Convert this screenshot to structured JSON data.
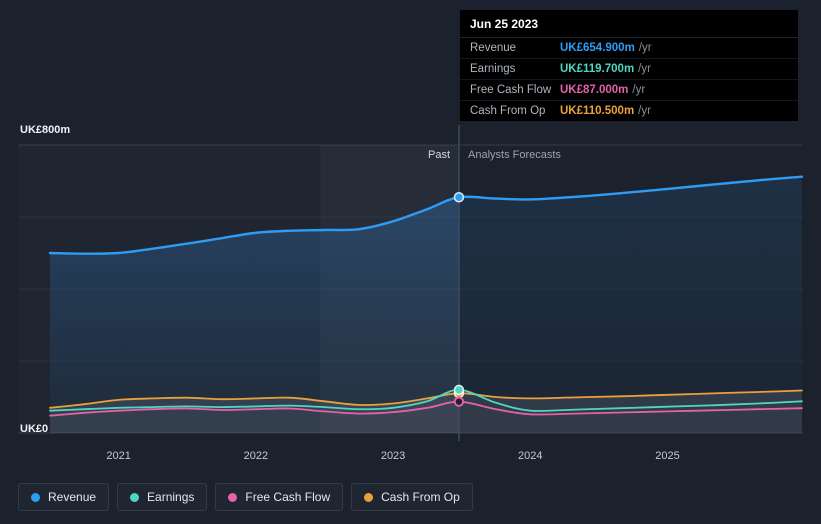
{
  "tooltip": {
    "date": "Jun 25 2023",
    "rows": [
      {
        "label": "Revenue",
        "value": "UK£654.900m",
        "suffix": "/yr",
        "color": "#2f9cf4"
      },
      {
        "label": "Earnings",
        "value": "UK£119.700m",
        "suffix": "/yr",
        "color": "#4fd6c2"
      },
      {
        "label": "Free Cash Flow",
        "value": "UK£87.000m",
        "suffix": "/yr",
        "color": "#e561aa"
      },
      {
        "label": "Cash From Op",
        "value": "UK£110.500m",
        "suffix": "/yr",
        "color": "#e9a23b"
      }
    ]
  },
  "axis": {
    "y_top": "UK£800m",
    "y_bottom": "UK£0",
    "x_ticks": [
      "2021",
      "2022",
      "2023",
      "2024",
      "2025"
    ]
  },
  "sections": {
    "past": "Past",
    "forecast": "Analysts Forecasts"
  },
  "legend": [
    {
      "label": "Revenue",
      "color": "#2f9cf4"
    },
    {
      "label": "Earnings",
      "color": "#4fd6c2"
    },
    {
      "label": "Free Cash Flow",
      "color": "#e561aa"
    },
    {
      "label": "Cash From Op",
      "color": "#e9a23b"
    }
  ],
  "chart_data": {
    "type": "line",
    "title": "Past and analysts forecast of Revenue, Earnings, Free Cash Flow and Cash From Op",
    "unit": "UK£m",
    "ylim": [
      0,
      800
    ],
    "x_range": [
      2020.5,
      2025.98
    ],
    "divider_x": 2023.48,
    "highlight_band": [
      2022.47,
      2023.48
    ],
    "x_ticks_years": [
      2021,
      2022,
      2023,
      2024,
      2025
    ],
    "x": [
      2020.5,
      2020.75,
      2021,
      2021.25,
      2021.5,
      2021.75,
      2022,
      2022.25,
      2022.5,
      2022.75,
      2023,
      2023.25,
      2023.48,
      2023.75,
      2024,
      2024.33,
      2024.66,
      2025,
      2025.33,
      2025.66,
      2025.98
    ],
    "series": [
      {
        "name": "Revenue",
        "color": "#2f9cf4",
        "marker_value": 654.9,
        "values": [
          500,
          498,
          500,
          512,
          526,
          541,
          556,
          562,
          564,
          566,
          588,
          622,
          654.9,
          651,
          649,
          656,
          666,
          678,
          690,
          702,
          712
        ]
      },
      {
        "name": "Earnings",
        "color": "#4fd6c2",
        "marker_value": 119.7,
        "values": [
          62,
          66,
          70,
          72,
          74,
          72,
          74,
          76,
          72,
          66,
          70,
          88,
          119.7,
          84,
          62,
          65,
          69,
          73,
          77,
          82,
          88
        ]
      },
      {
        "name": "Free Cash Flow",
        "color": "#e561aa",
        "marker_value": 87.0,
        "values": [
          48,
          56,
          62,
          66,
          68,
          64,
          66,
          68,
          60,
          54,
          58,
          70,
          87,
          66,
          52,
          54,
          57,
          60,
          63,
          66,
          69
        ]
      },
      {
        "name": "Cash From Op",
        "color": "#e9a23b",
        "marker_value": 110.5,
        "values": [
          70,
          80,
          92,
          96,
          98,
          94,
          96,
          98,
          88,
          78,
          82,
          96,
          110.5,
          100,
          96,
          99,
          102,
          106,
          110,
          114,
          118
        ]
      }
    ],
    "legend_position": "bottom",
    "grid": true
  }
}
